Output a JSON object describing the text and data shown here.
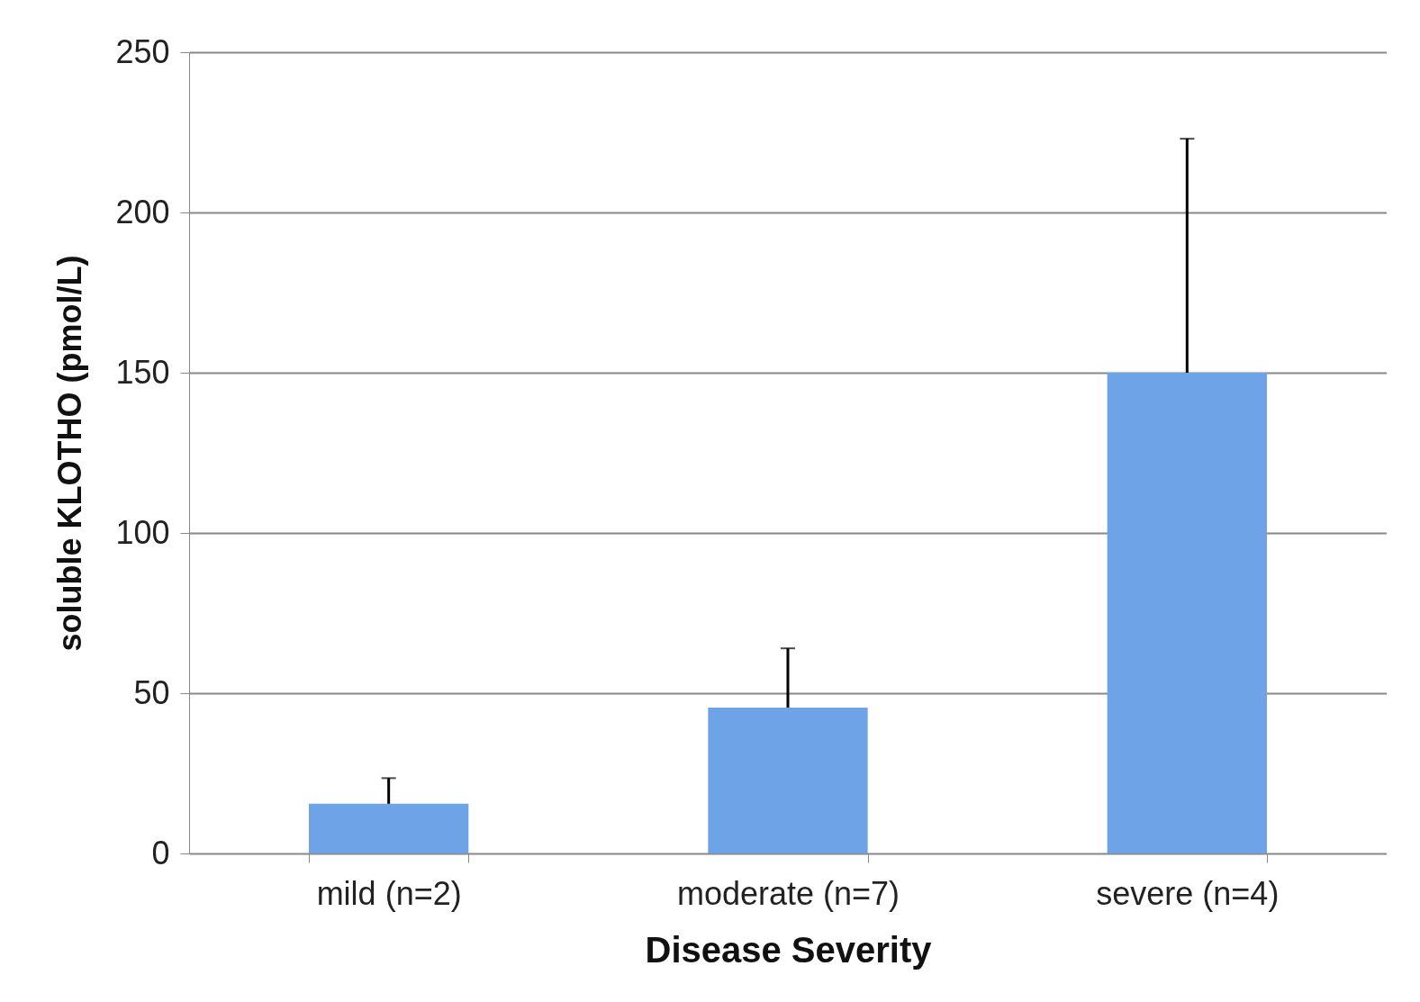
{
  "chart_data": {
    "type": "bar",
    "xlabel": "Disease Severity",
    "ylabel": "soluble KLOTHO (pmol/L)",
    "categories": [
      "mild (n=2)",
      "moderate (n=7)",
      "severe (n=4)"
    ],
    "values": [
      15.5,
      45.5,
      150
    ],
    "color": "#6fa3e8",
    "errors": [
      [
        15.5,
        23.5
      ],
      [
        45.5,
        64
      ],
      [
        150,
        223
      ]
    ],
    "ylim": [
      0,
      250
    ],
    "yticks": [
      0,
      50,
      100,
      150,
      200,
      250
    ],
    "grid": "y"
  }
}
